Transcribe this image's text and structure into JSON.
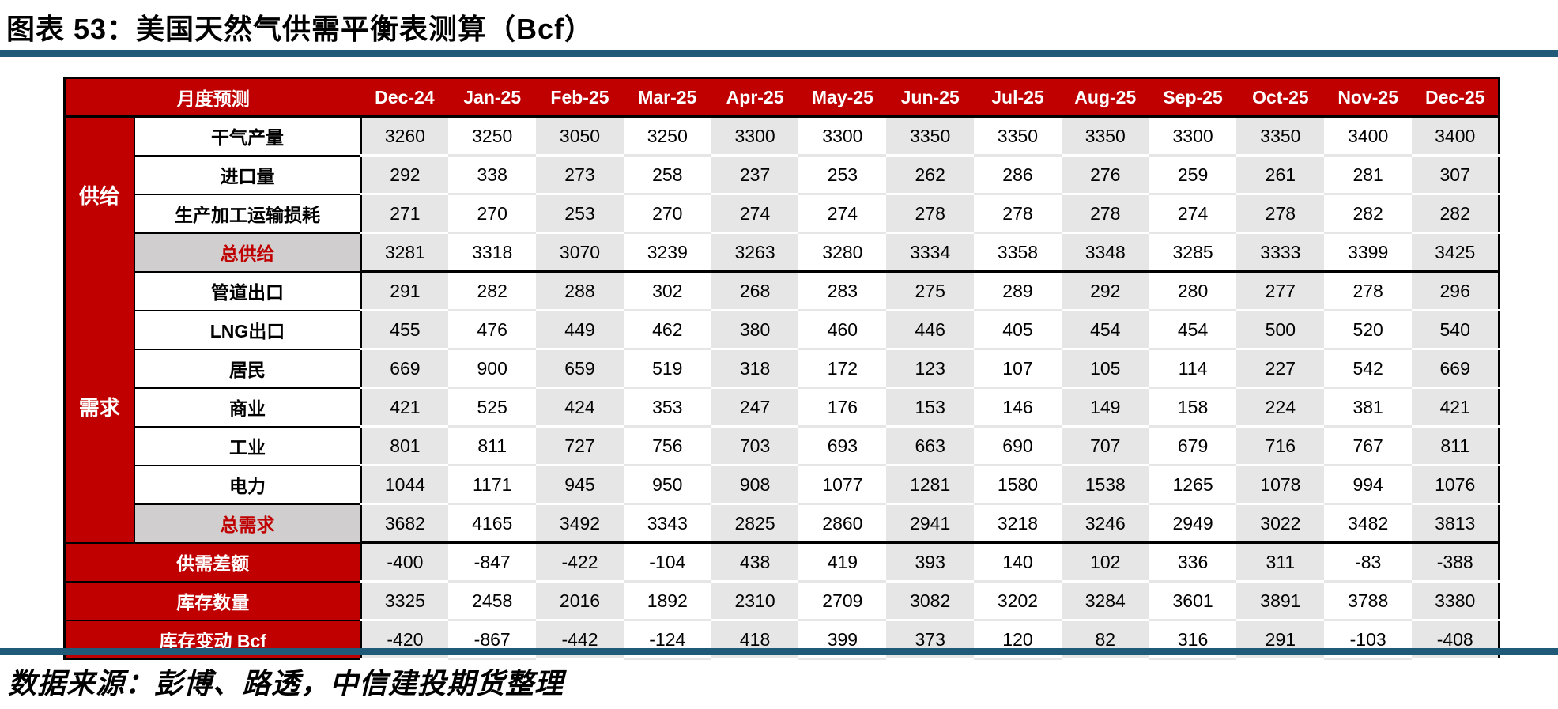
{
  "title": "图表 53：美国天然气供需平衡表测算（Bcf）",
  "source_note": "数据来源：彭博、路透，中信建投期货整理",
  "colors": {
    "brand_red": "#C00000",
    "stripe_gray": "#E7E6E6",
    "total_label_gray": "#D0CECE",
    "total_text_red": "#C00000",
    "accent_rule_blue": "#1F5B78"
  },
  "chart_data": {
    "type": "table",
    "title": "美国天然气供需平衡表测算（Bcf）",
    "corner_label": "月度预测",
    "columns": [
      "Dec-24",
      "Jan-25",
      "Feb-25",
      "Mar-25",
      "Apr-25",
      "May-25",
      "Jun-25",
      "Jul-25",
      "Aug-25",
      "Sep-25",
      "Oct-25",
      "Nov-25",
      "Dec-25"
    ],
    "groups": [
      {
        "name": "供给",
        "rows": [
          {
            "label": "干气产量",
            "type": "normal",
            "values": [
              3260,
              3250,
              3050,
              3250,
              3300,
              3300,
              3350,
              3350,
              3350,
              3300,
              3350,
              3400,
              3400
            ]
          },
          {
            "label": "进口量",
            "type": "normal",
            "values": [
              292,
              338,
              273,
              258,
              237,
              253,
              262,
              286,
              276,
              259,
              261,
              281,
              307
            ]
          },
          {
            "label": "生产加工运输损耗",
            "type": "normal",
            "values": [
              271,
              270,
              253,
              270,
              274,
              274,
              278,
              278,
              278,
              274,
              278,
              282,
              282
            ]
          },
          {
            "label": "总供给",
            "type": "total",
            "values": [
              3281,
              3318,
              3070,
              3239,
              3263,
              3280,
              3334,
              3358,
              3348,
              3285,
              3333,
              3399,
              3425
            ]
          }
        ]
      },
      {
        "name": "需求",
        "rows": [
          {
            "label": "管道出口",
            "type": "normal",
            "values": [
              291,
              282,
              288,
              302,
              268,
              283,
              275,
              289,
              292,
              280,
              277,
              278,
              296
            ]
          },
          {
            "label": "LNG出口",
            "type": "normal",
            "values": [
              455,
              476,
              449,
              462,
              380,
              460,
              446,
              405,
              454,
              454,
              500,
              520,
              540
            ]
          },
          {
            "label": "居民",
            "type": "normal",
            "values": [
              669,
              900,
              659,
              519,
              318,
              172,
              123,
              107,
              105,
              114,
              227,
              542,
              669
            ]
          },
          {
            "label": "商业",
            "type": "normal",
            "values": [
              421,
              525,
              424,
              353,
              247,
              176,
              153,
              146,
              149,
              158,
              224,
              381,
              421
            ]
          },
          {
            "label": "工业",
            "type": "normal",
            "values": [
              801,
              811,
              727,
              756,
              703,
              693,
              663,
              690,
              707,
              679,
              716,
              767,
              811
            ]
          },
          {
            "label": "电力",
            "type": "normal",
            "values": [
              1044,
              1171,
              945,
              950,
              908,
              1077,
              1281,
              1580,
              1538,
              1265,
              1078,
              994,
              1076
            ]
          },
          {
            "label": "总需求",
            "type": "total",
            "values": [
              3682,
              4165,
              3492,
              3343,
              2825,
              2860,
              2941,
              3218,
              3246,
              2949,
              3022,
              3482,
              3813
            ]
          }
        ]
      }
    ],
    "summary_rows": [
      {
        "label": "供需差额",
        "values": [
          -400,
          -847,
          -422,
          -104,
          438,
          419,
          393,
          140,
          102,
          336,
          311,
          -83,
          -388
        ]
      },
      {
        "label": "库存数量",
        "values": [
          3325,
          2458,
          2016,
          1892,
          2310,
          2709,
          3082,
          3202,
          3284,
          3601,
          3891,
          3788,
          3380
        ]
      },
      {
        "label": "库存变动 Bcf",
        "values": [
          -420,
          -867,
          -442,
          -124,
          418,
          399,
          373,
          120,
          82,
          316,
          291,
          -103,
          -408
        ]
      }
    ]
  }
}
